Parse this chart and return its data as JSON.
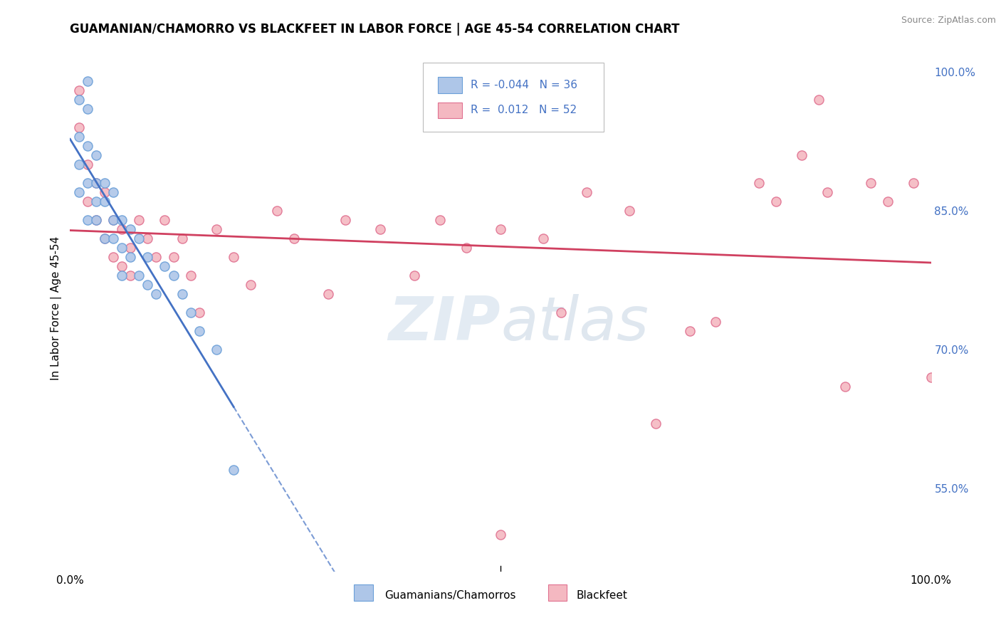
{
  "title": "GUAMANIAN/CHAMORRO VS BLACKFEET IN LABOR FORCE | AGE 45-54 CORRELATION CHART",
  "source": "Source: ZipAtlas.com",
  "ylabel": "In Labor Force | Age 45-54",
  "xlim": [
    0.0,
    1.0
  ],
  "ylim": [
    0.46,
    1.03
  ],
  "right_yticks": [
    0.55,
    0.7,
    0.85,
    1.0
  ],
  "right_yticklabels": [
    "55.0%",
    "70.0%",
    "85.0%",
    "100.0%"
  ],
  "blue_color": "#aec6e8",
  "pink_color": "#f4b8c1",
  "blue_edge": "#6a9fd8",
  "pink_edge": "#e07090",
  "trend_blue_color": "#4472c4",
  "trend_pink_color": "#d04060",
  "background_color": "#ffffff",
  "grid_color": "#cccccc",
  "R_blue": -0.044,
  "R_pink": 0.012,
  "N_blue": 36,
  "N_pink": 52,
  "blue_x": [
    0.01,
    0.01,
    0.01,
    0.01,
    0.02,
    0.02,
    0.02,
    0.02,
    0.02,
    0.03,
    0.03,
    0.03,
    0.03,
    0.04,
    0.04,
    0.04,
    0.05,
    0.05,
    0.05,
    0.06,
    0.06,
    0.06,
    0.07,
    0.07,
    0.08,
    0.08,
    0.09,
    0.09,
    0.1,
    0.11,
    0.12,
    0.13,
    0.14,
    0.15,
    0.17,
    0.19
  ],
  "blue_y": [
    0.97,
    0.93,
    0.9,
    0.87,
    0.99,
    0.96,
    0.92,
    0.88,
    0.84,
    0.91,
    0.88,
    0.86,
    0.84,
    0.88,
    0.86,
    0.82,
    0.87,
    0.84,
    0.82,
    0.84,
    0.81,
    0.78,
    0.83,
    0.8,
    0.82,
    0.78,
    0.8,
    0.77,
    0.76,
    0.79,
    0.78,
    0.76,
    0.74,
    0.72,
    0.7,
    0.57
  ],
  "pink_x": [
    0.01,
    0.01,
    0.02,
    0.02,
    0.03,
    0.03,
    0.04,
    0.04,
    0.05,
    0.05,
    0.06,
    0.06,
    0.07,
    0.07,
    0.08,
    0.09,
    0.1,
    0.11,
    0.12,
    0.13,
    0.14,
    0.15,
    0.17,
    0.19,
    0.21,
    0.24,
    0.26,
    0.3,
    0.32,
    0.36,
    0.4,
    0.43,
    0.46,
    0.5,
    0.5,
    0.55,
    0.57,
    0.6,
    0.65,
    0.68,
    0.72,
    0.75,
    0.8,
    0.82,
    0.85,
    0.87,
    0.88,
    0.9,
    0.93,
    0.95,
    0.98,
    1.0
  ],
  "pink_y": [
    0.98,
    0.94,
    0.9,
    0.86,
    0.88,
    0.84,
    0.87,
    0.82,
    0.84,
    0.8,
    0.83,
    0.79,
    0.81,
    0.78,
    0.84,
    0.82,
    0.8,
    0.84,
    0.8,
    0.82,
    0.78,
    0.74,
    0.83,
    0.8,
    0.77,
    0.85,
    0.82,
    0.76,
    0.84,
    0.83,
    0.78,
    0.84,
    0.81,
    0.83,
    0.5,
    0.82,
    0.74,
    0.87,
    0.85,
    0.62,
    0.72,
    0.73,
    0.88,
    0.86,
    0.91,
    0.97,
    0.87,
    0.66,
    0.88,
    0.86,
    0.88,
    0.67
  ]
}
